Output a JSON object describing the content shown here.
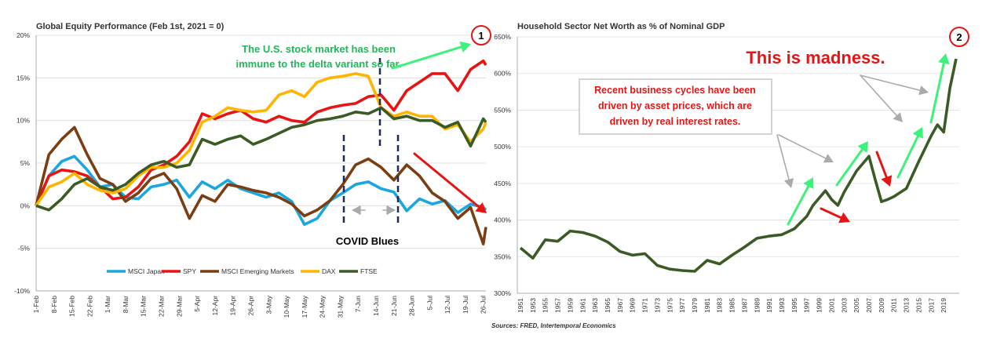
{
  "chart_data": [
    {
      "type": "line",
      "title": "Global Equity Performance (Feb 1st, 2021 = 0)",
      "ylim": [
        -10,
        20
      ],
      "yticks": [
        "20%",
        "15%",
        "10%",
        "5%",
        "0%",
        "-5%",
        "-10%"
      ],
      "x_ticks": [
        "1-Feb",
        "8-Feb",
        "15-Feb",
        "22-Feb",
        "1-Mar",
        "8-Mar",
        "15-Mar",
        "22-Mar",
        "29-Mar",
        "5-Apr",
        "12-Apr",
        "19-Apr",
        "26-Apr",
        "3-May",
        "10-May",
        "17-May",
        "24-May",
        "31-May",
        "7-Jun",
        "14-Jun",
        "21-Jun",
        "28-Jun",
        "5-Jul",
        "12-Jul",
        "19-Jul",
        "26-Jul"
      ],
      "legend_position": "bottom",
      "series": [
        {
          "name": "MSCI Japan",
          "color": "#1aa7e0",
          "x": [
            0,
            5,
            10,
            15,
            20,
            25,
            30,
            35,
            40,
            45,
            50,
            55,
            60,
            65,
            70,
            75,
            80,
            85,
            90,
            95,
            100,
            105,
            110,
            115,
            120,
            125,
            130,
            135,
            140,
            145,
            150,
            155,
            160,
            165,
            170,
            175,
            176
          ],
          "y": [
            0,
            3.5,
            5.2,
            5.8,
            4.2,
            2.2,
            2.5,
            1,
            0.8,
            2.2,
            2.5,
            3,
            1,
            2.8,
            2,
            3,
            2,
            1.5,
            1,
            1.5,
            0.5,
            -2.2,
            -1.5,
            0.6,
            1.5,
            2.5,
            2.8,
            2,
            1.6,
            -0.6,
            0.8,
            0.2,
            0.6,
            -0.8,
            0.2,
            -0.2,
            -0.5
          ]
        },
        {
          "name": "SPY",
          "color": "#e81414",
          "x": [
            0,
            5,
            10,
            15,
            20,
            25,
            30,
            35,
            40,
            45,
            50,
            55,
            60,
            65,
            70,
            75,
            80,
            85,
            90,
            95,
            100,
            105,
            110,
            115,
            120,
            125,
            130,
            135,
            140,
            145,
            150,
            155,
            160,
            165,
            170,
            175,
            176
          ],
          "y": [
            0,
            3.5,
            4.2,
            4,
            3.5,
            2.2,
            0.8,
            1,
            2.2,
            4.2,
            4.8,
            5.8,
            7.5,
            10.8,
            10.2,
            10.8,
            11.2,
            10.2,
            9.8,
            10.5,
            10,
            9.8,
            11,
            11.5,
            11.8,
            12,
            12.8,
            13,
            11.2,
            13.5,
            14.5,
            15.5,
            15.5,
            13.5,
            16,
            17,
            16.5
          ]
        },
        {
          "name": "MSCI Emerging Markets",
          "color": "#7b3e12",
          "x": [
            0,
            5,
            10,
            15,
            20,
            25,
            30,
            35,
            40,
            45,
            50,
            55,
            60,
            65,
            70,
            75,
            80,
            85,
            90,
            95,
            100,
            105,
            110,
            115,
            120,
            125,
            130,
            135,
            140,
            145,
            150,
            155,
            160,
            165,
            170,
            175,
            176
          ],
          "y": [
            0,
            6,
            7.8,
            9.2,
            6,
            3.2,
            2.5,
            0.5,
            1.5,
            3.2,
            3.8,
            2,
            -1.5,
            1.2,
            0.5,
            2.5,
            2.2,
            1.8,
            1.5,
            1,
            0.2,
            -1.2,
            -0.5,
            0.6,
            2.5,
            4.8,
            5.5,
            4.5,
            3,
            4.8,
            3.5,
            1.5,
            0.5,
            -1.5,
            -0.2,
            -4.5,
            -2.5
          ]
        },
        {
          "name": "DAX",
          "color": "#ffb400",
          "x": [
            0,
            5,
            10,
            15,
            20,
            25,
            30,
            35,
            40,
            45,
            50,
            55,
            60,
            65,
            70,
            75,
            80,
            85,
            90,
            95,
            100,
            105,
            110,
            115,
            120,
            125,
            130,
            135,
            140,
            145,
            150,
            155,
            160,
            165,
            170,
            175,
            176
          ],
          "y": [
            0,
            2.2,
            2.8,
            3.8,
            2.5,
            1.8,
            1.5,
            2,
            3.5,
            4.5,
            4.5,
            5,
            6.5,
            9.8,
            10.5,
            11.5,
            11.2,
            11,
            11.2,
            13,
            13.5,
            12.8,
            14.5,
            15,
            15.2,
            15.5,
            15.2,
            11.5,
            10.5,
            11,
            10.5,
            10.5,
            9,
            9.5,
            7.5,
            9,
            9.8
          ]
        },
        {
          "name": "FTSE",
          "color": "#3c5a24",
          "x": [
            0,
            5,
            10,
            15,
            20,
            25,
            30,
            35,
            40,
            45,
            50,
            55,
            60,
            65,
            70,
            75,
            80,
            85,
            90,
            95,
            100,
            105,
            110,
            115,
            120,
            125,
            130,
            135,
            140,
            145,
            150,
            155,
            160,
            165,
            170,
            175,
            176
          ],
          "y": [
            0,
            -0.5,
            0.8,
            2.5,
            3.2,
            2.2,
            1.8,
            2.5,
            3.8,
            4.8,
            5.2,
            4.5,
            4.8,
            7.8,
            7.2,
            7.8,
            8.2,
            7.2,
            7.8,
            8.5,
            9.2,
            9.5,
            10,
            10.2,
            10.5,
            11,
            10.8,
            11.5,
            10.2,
            10.5,
            10,
            10,
            9.2,
            9.8,
            7,
            10.2,
            9.8
          ]
        }
      ],
      "annotations": [
        {
          "text": "The U.S. stock market has been immune to the delta variant so far.",
          "color": "#1fb85a"
        },
        {
          "text": "COVID Blues",
          "color": "#000000"
        },
        {
          "text": "1",
          "color": "#e81414"
        }
      ]
    },
    {
      "type": "line",
      "title": "Household Sector Net Worth as % of Nominal GDP",
      "ylim": [
        300,
        650
      ],
      "yticks": [
        "650%",
        "600%",
        "550%",
        "500%",
        "450%",
        "400%",
        "350%",
        "300%"
      ],
      "x_ticks": [
        "1951",
        "1953",
        "1955",
        "1957",
        "1959",
        "1961",
        "1963",
        "1965",
        "1967",
        "1969",
        "1971",
        "1973",
        "1975",
        "1977",
        "1979",
        "1981",
        "1983",
        "1985",
        "1987",
        "1989",
        "1991",
        "1993",
        "1995",
        "1997",
        "1999",
        "2001",
        "2003",
        "2005",
        "2007",
        "2009",
        "2011",
        "2013",
        "2015",
        "2017",
        "2019"
      ],
      "series": [
        {
          "name": "",
          "color": "#3c5a24",
          "x": [
            1951,
            1953,
            1955,
            1957,
            1959,
            1961,
            1963,
            1965,
            1967,
            1969,
            1971,
            1973,
            1975,
            1977,
            1979,
            1981,
            1983,
            1985,
            1987,
            1989,
            1991,
            1993,
            1995,
            1997,
            1998,
            1999,
            2000,
            2001,
            2002,
            2003,
            2005,
            2007,
            2008,
            2009,
            2010,
            2011,
            2013,
            2015,
            2017,
            2018,
            2019,
            2020,
            2021
          ],
          "y": [
            362,
            348,
            373,
            371,
            385,
            383,
            378,
            370,
            357,
            352,
            354,
            338,
            333,
            331,
            330,
            345,
            340,
            352,
            363,
            375,
            378,
            380,
            388,
            405,
            420,
            430,
            440,
            428,
            420,
            438,
            467,
            487,
            455,
            425,
            428,
            432,
            443,
            480,
            515,
            530,
            520,
            580,
            620
          ]
        }
      ],
      "annotations": [
        {
          "text": "This is madness.",
          "color": "#e81414"
        },
        {
          "text": "Recent business cycles have been driven by asset prices, which are driven by real interest rates.",
          "color": "#e81414"
        },
        {
          "text": "2",
          "color": "#e81414"
        }
      ]
    }
  ],
  "sources": "Sources: FRED, Intertemporal Economics"
}
